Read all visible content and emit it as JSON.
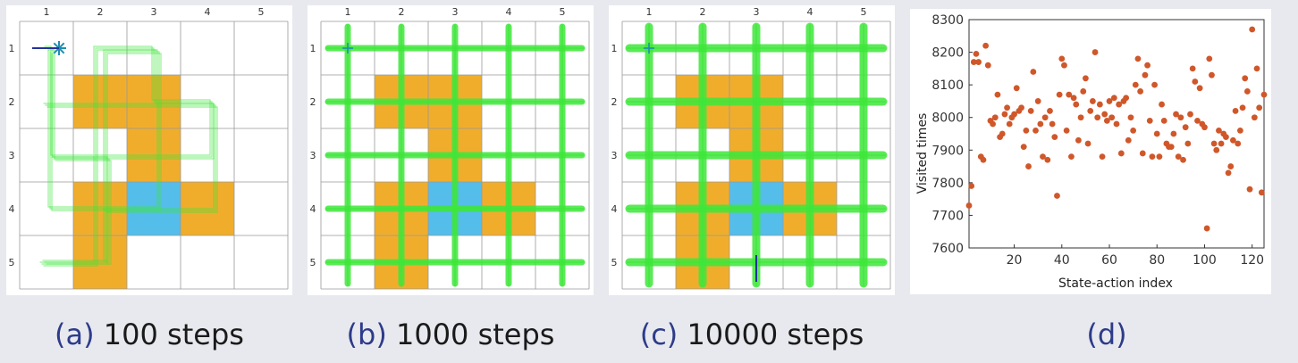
{
  "grid": {
    "col_labels": [
      "1",
      "2",
      "3",
      "4",
      "5"
    ],
    "row_labels": [
      "1",
      "2",
      "3",
      "4",
      "5"
    ],
    "forbidden_cells": [
      [
        2,
        2
      ],
      [
        2,
        3
      ],
      [
        3,
        3
      ],
      [
        4,
        2
      ],
      [
        4,
        4
      ],
      [
        5,
        2
      ]
    ],
    "target_cells": [
      [
        4,
        3
      ]
    ],
    "colors": {
      "forbidden": "#f0ad2c",
      "target": "#55bdea",
      "trajectory": "#3ee63a",
      "gridline": "#999999",
      "agent": "#1f8fb0"
    }
  },
  "panels": [
    {
      "id": "a",
      "tag": "(a)",
      "caption": "100 steps"
    },
    {
      "id": "b",
      "tag": "(b)",
      "caption": "1000 steps"
    },
    {
      "id": "c",
      "tag": "(c)",
      "caption": "10000 steps"
    }
  ],
  "scatter_caption": {
    "tag": "(d)"
  },
  "chart_data": {
    "type": "scatter",
    "xlabel": "State-action index",
    "ylabel": "Visited times",
    "xlim": [
      1,
      125
    ],
    "ylim": [
      7600,
      8300
    ],
    "xticks": [
      20,
      40,
      60,
      80,
      100,
      120
    ],
    "yticks": [
      7600,
      7700,
      7800,
      7900,
      8000,
      8100,
      8200,
      8300
    ],
    "marker_color": "#d0572a",
    "x": [
      1,
      2,
      3,
      4,
      5,
      6,
      7,
      8,
      9,
      10,
      11,
      12,
      13,
      14,
      15,
      16,
      17,
      18,
      19,
      20,
      21,
      22,
      23,
      24,
      25,
      26,
      27,
      28,
      29,
      30,
      31,
      32,
      33,
      34,
      35,
      36,
      37,
      38,
      39,
      40,
      41,
      42,
      43,
      44,
      45,
      46,
      47,
      48,
      49,
      50,
      51,
      52,
      53,
      54,
      55,
      56,
      57,
      58,
      59,
      60,
      61,
      62,
      63,
      64,
      65,
      66,
      67,
      68,
      69,
      70,
      71,
      72,
      73,
      74,
      75,
      76,
      77,
      78,
      79,
      80,
      81,
      82,
      83,
      84,
      85,
      86,
      87,
      88,
      89,
      90,
      91,
      92,
      93,
      94,
      95,
      96,
      97,
      98,
      99,
      100,
      101,
      102,
      103,
      104,
      105,
      106,
      107,
      108,
      109,
      110,
      111,
      112,
      113,
      114,
      115,
      116,
      117,
      118,
      119,
      120,
      121,
      122,
      123,
      124,
      125
    ],
    "y": [
      7730,
      7790,
      8170,
      8195,
      8170,
      7880,
      7870,
      8220,
      8160,
      7990,
      7980,
      8000,
      8070,
      7940,
      7950,
      8010,
      8030,
      7980,
      8000,
      8010,
      8090,
      8020,
      8030,
      7910,
      7960,
      7850,
      8020,
      8140,
      7960,
      8050,
      7980,
      7880,
      8000,
      7870,
      8020,
      7980,
      7940,
      7760,
      8070,
      8180,
      8160,
      7960,
      8070,
      7880,
      8060,
      8040,
      7930,
      8000,
      8080,
      8120,
      7920,
      8020,
      8050,
      8200,
      8000,
      8040,
      7880,
      8010,
      7990,
      8050,
      8000,
      8060,
      7980,
      8040,
      7890,
      8050,
      8060,
      7930,
      8000,
      7960,
      8100,
      8180,
      8080,
      7890,
      8130,
      8160,
      7990,
      7880,
      8100,
      7950,
      7880,
      8040,
      7990,
      7920,
      7910,
      7910,
      7950,
      8010,
      7880,
      8000,
      7870,
      7970,
      7920,
      8010,
      8150,
      8110,
      7990,
      8090,
      7980,
      7970,
      7660,
      8180,
      8130,
      7920,
      7900,
      7960,
      7920,
      7950,
      7940,
      7830,
      7850,
      7930,
      8020,
      7920,
      7960,
      8030,
      8120,
      8080,
      7780,
      8270,
      8000,
      8150,
      8030,
      7770,
      8070
    ]
  }
}
